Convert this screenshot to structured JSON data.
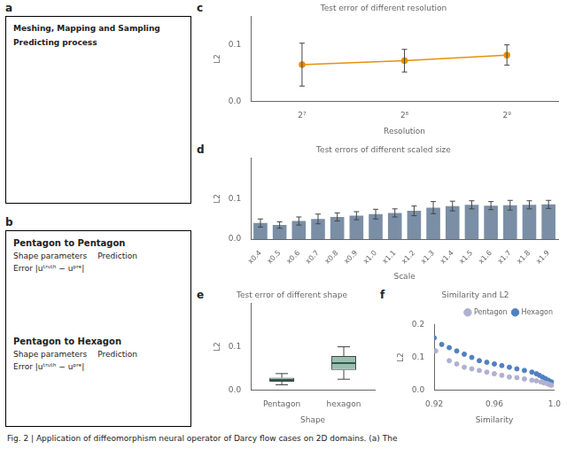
{
  "chart_data": [
    {
      "type": "blank",
      "annotations": [
        "a",
        "Meshing, Mapping and Sampling",
        "Predicting process"
      ]
    },
    {
      "type": "blank",
      "annotations": [
        "b",
        "Pentagon to Pentagon",
        "Shape parameters",
        "Prediction",
        "Error |uᵗʳᵘᵗʰ − uᵖʳᵉ|",
        "Pentagon to Hexagon",
        "Shape parameters",
        "Prediction",
        "Error |uᵗʳᵘᵗʰ − uᵖʳᵉ|"
      ]
    },
    {
      "type": "line",
      "title": "Test error of different resolution",
      "xlabel": "Resolution",
      "ylabel": "L2",
      "annotations": [
        "c"
      ],
      "categories": [
        "2⁷",
        "2⁸",
        "2⁹"
      ],
      "values": [
        0.065,
        0.072,
        0.082
      ],
      "errors": [
        0.038,
        0.02,
        0.018
      ],
      "color": "#E8900A",
      "marker": "circle",
      "ylim": [
        0.0,
        0.15
      ],
      "yticks": [
        {
          "value": 0,
          "label": "0.0"
        },
        0.1
      ],
      "grid": false
    },
    {
      "type": "bar",
      "title": "Test errors of different scaled size",
      "xlabel": "Scale",
      "ylabel": "L2",
      "annotations": [
        "d"
      ],
      "categories": [
        "x0.4",
        "x0.5",
        "x0.6",
        "x0.7",
        "x0.8",
        "x0.9",
        "x1.0",
        "x1.1",
        "x1.2",
        "x1.3",
        "x1.4",
        "x1.5",
        "x1.6",
        "x1.7",
        "x1.8",
        "x1.9"
      ],
      "values": [
        0.04,
        0.035,
        0.045,
        0.05,
        0.055,
        0.058,
        0.062,
        0.065,
        0.07,
        0.078,
        0.082,
        0.085,
        0.083,
        0.084,
        0.085,
        0.086
      ],
      "errors": [
        0.01,
        0.008,
        0.01,
        0.012,
        0.01,
        0.01,
        0.012,
        0.01,
        0.012,
        0.015,
        0.012,
        0.01,
        0.01,
        0.012,
        0.01,
        0.01
      ],
      "color": "#7a8fa6",
      "ylim": [
        0.0,
        0.2
      ],
      "yticks": [
        {
          "value": 0,
          "label": "0.0"
        },
        0.1
      ],
      "grid": false
    },
    {
      "type": "box",
      "title": "Test error of different shape",
      "xlabel": "Shape",
      "ylabel": "L2",
      "annotations": [
        "e"
      ],
      "categories": [
        "Pentagon",
        "hexagon"
      ],
      "whisker_low": [
        0.012,
        0.025
      ],
      "q1": [
        0.0195,
        0.04625
      ],
      "median": [
        0.0235,
        0.0625
      ],
      "q3": [
        0.0285,
        0.07875
      ],
      "whisker_high": [
        0.038,
        0.1
      ],
      "color": "#9abfb0",
      "ylim": [
        0.0,
        0.2
      ],
      "yticks": [
        {
          "value": 0,
          "label": "0.0"
        },
        0.1
      ],
      "grid": false
    },
    {
      "type": "scatter",
      "title": "Similarity and L2",
      "xlabel": "Similarity",
      "ylabel": "L2",
      "annotations": [
        "f"
      ],
      "series": [
        {
          "name": "Pentagon",
          "color": "#b0b0d0",
          "marker": "circle",
          "x": [
            0.921,
            0.93,
            0.935,
            0.94,
            0.945,
            0.95,
            0.955,
            0.96,
            0.965,
            0.97,
            0.975,
            0.98,
            0.985,
            0.988,
            0.991,
            0.993,
            0.995,
            0.996,
            0.997,
            0.998
          ],
          "values": [
            0.12,
            0.09,
            0.08,
            0.07,
            0.065,
            0.06,
            0.055,
            0.05,
            0.045,
            0.04,
            0.038,
            0.034,
            0.03,
            0.028,
            0.025,
            0.022,
            0.02,
            0.018,
            0.016,
            0.015
          ]
        },
        {
          "name": "Hexagon",
          "color": "#5080c0",
          "marker": "circle",
          "x": [
            0.92,
            0.925,
            0.93,
            0.935,
            0.94,
            0.945,
            0.95,
            0.955,
            0.96,
            0.965,
            0.97,
            0.975,
            0.98,
            0.985,
            0.988,
            0.99,
            0.992,
            0.994,
            0.996,
            0.998
          ],
          "values": [
            0.16,
            0.14,
            0.13,
            0.12,
            0.11,
            0.1,
            0.09,
            0.085,
            0.08,
            0.075,
            0.07,
            0.065,
            0.06,
            0.055,
            0.05,
            0.045,
            0.04,
            0.035,
            0.03,
            0.025
          ]
        }
      ],
      "xlim": [
        0.92,
        1.0
      ],
      "xticks": [
        0.92,
        0.96,
        {
          "value": 1,
          "label": "1.0"
        }
      ],
      "ylim": [
        0.0,
        0.2
      ],
      "yticks": [
        {
          "value": 0,
          "label": "0.0"
        },
        0.1,
        0.2
      ],
      "legend": "upper right",
      "grid": false
    },
    {
      "type": "caption",
      "annotations": [
        "Fig. 2 | Application of diffeomorphism neural operator of Darcy flow cases on 2D domains. (a) The"
      ]
    }
  ]
}
